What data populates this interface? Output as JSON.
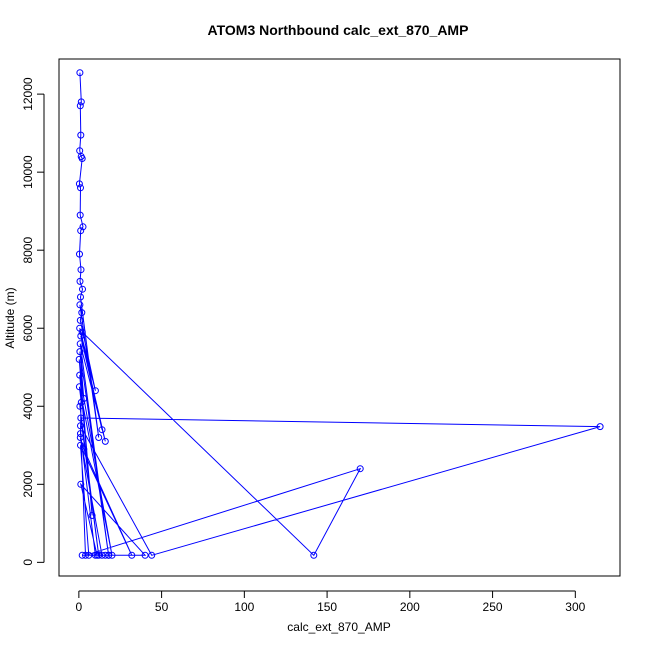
{
  "chart_data": {
    "type": "line",
    "title": "ATOM3 Northbound calc_ext_870_AMP",
    "xlabel": "calc_ext_870_AMP",
    "ylabel": "Altitude (m)",
    "xlim": [
      -12,
      327
    ],
    "ylim": [
      -350,
      12900
    ],
    "x_ticks": [
      0,
      50,
      100,
      150,
      200,
      250,
      300
    ],
    "y_ticks": [
      0,
      2000,
      4000,
      6000,
      8000,
      10000,
      12000
    ],
    "series": [
      {
        "color": "#0000ff",
        "marker": "open-circle",
        "x": [
          0.6,
          1.5,
          0.9,
          1.2,
          0.5,
          1.4,
          2.0,
          0.3,
          1.0,
          0.8,
          2.5,
          1.1,
          0.4,
          1.3,
          0.7,
          2.2,
          1.0,
          12.0,
          0.6,
          1.8,
          0.9,
          10.0,
          0.5,
          14.0,
          1.2,
          16.0,
          0.8,
          18.0,
          0.6,
          3.0,
          0.2,
          8.0,
          0.5,
          20.0,
          0.3,
          1.5,
          0.6,
          12.0,
          1.2,
          315.0,
          44.0,
          1.0,
          4.0,
          170.0,
          142.0,
          2.0,
          1.0,
          10.0,
          16.0,
          14.0,
          0.9,
          3.0,
          32.0,
          1.0,
          6.0,
          40.0,
          1.2,
          11.0,
          18.0,
          2.0
        ],
        "y": [
          12550,
          11800,
          11700,
          10950,
          10550,
          10400,
          10350,
          9700,
          9600,
          8900,
          8600,
          8500,
          7900,
          7500,
          7200,
          7000,
          6800,
          3200,
          6600,
          6400,
          6200,
          4400,
          6000,
          3400,
          5800,
          3100,
          5600,
          180,
          5400,
          4200,
          5200,
          1200,
          4800,
          180,
          4500,
          4100,
          4000,
          180,
          3700,
          3480,
          180,
          3500,
          180,
          2400,
          180,
          5900,
          3300,
          180,
          180,
          180,
          3200,
          2900,
          180,
          3000,
          180,
          180,
          2000,
          180,
          180,
          180
        ]
      }
    ]
  }
}
